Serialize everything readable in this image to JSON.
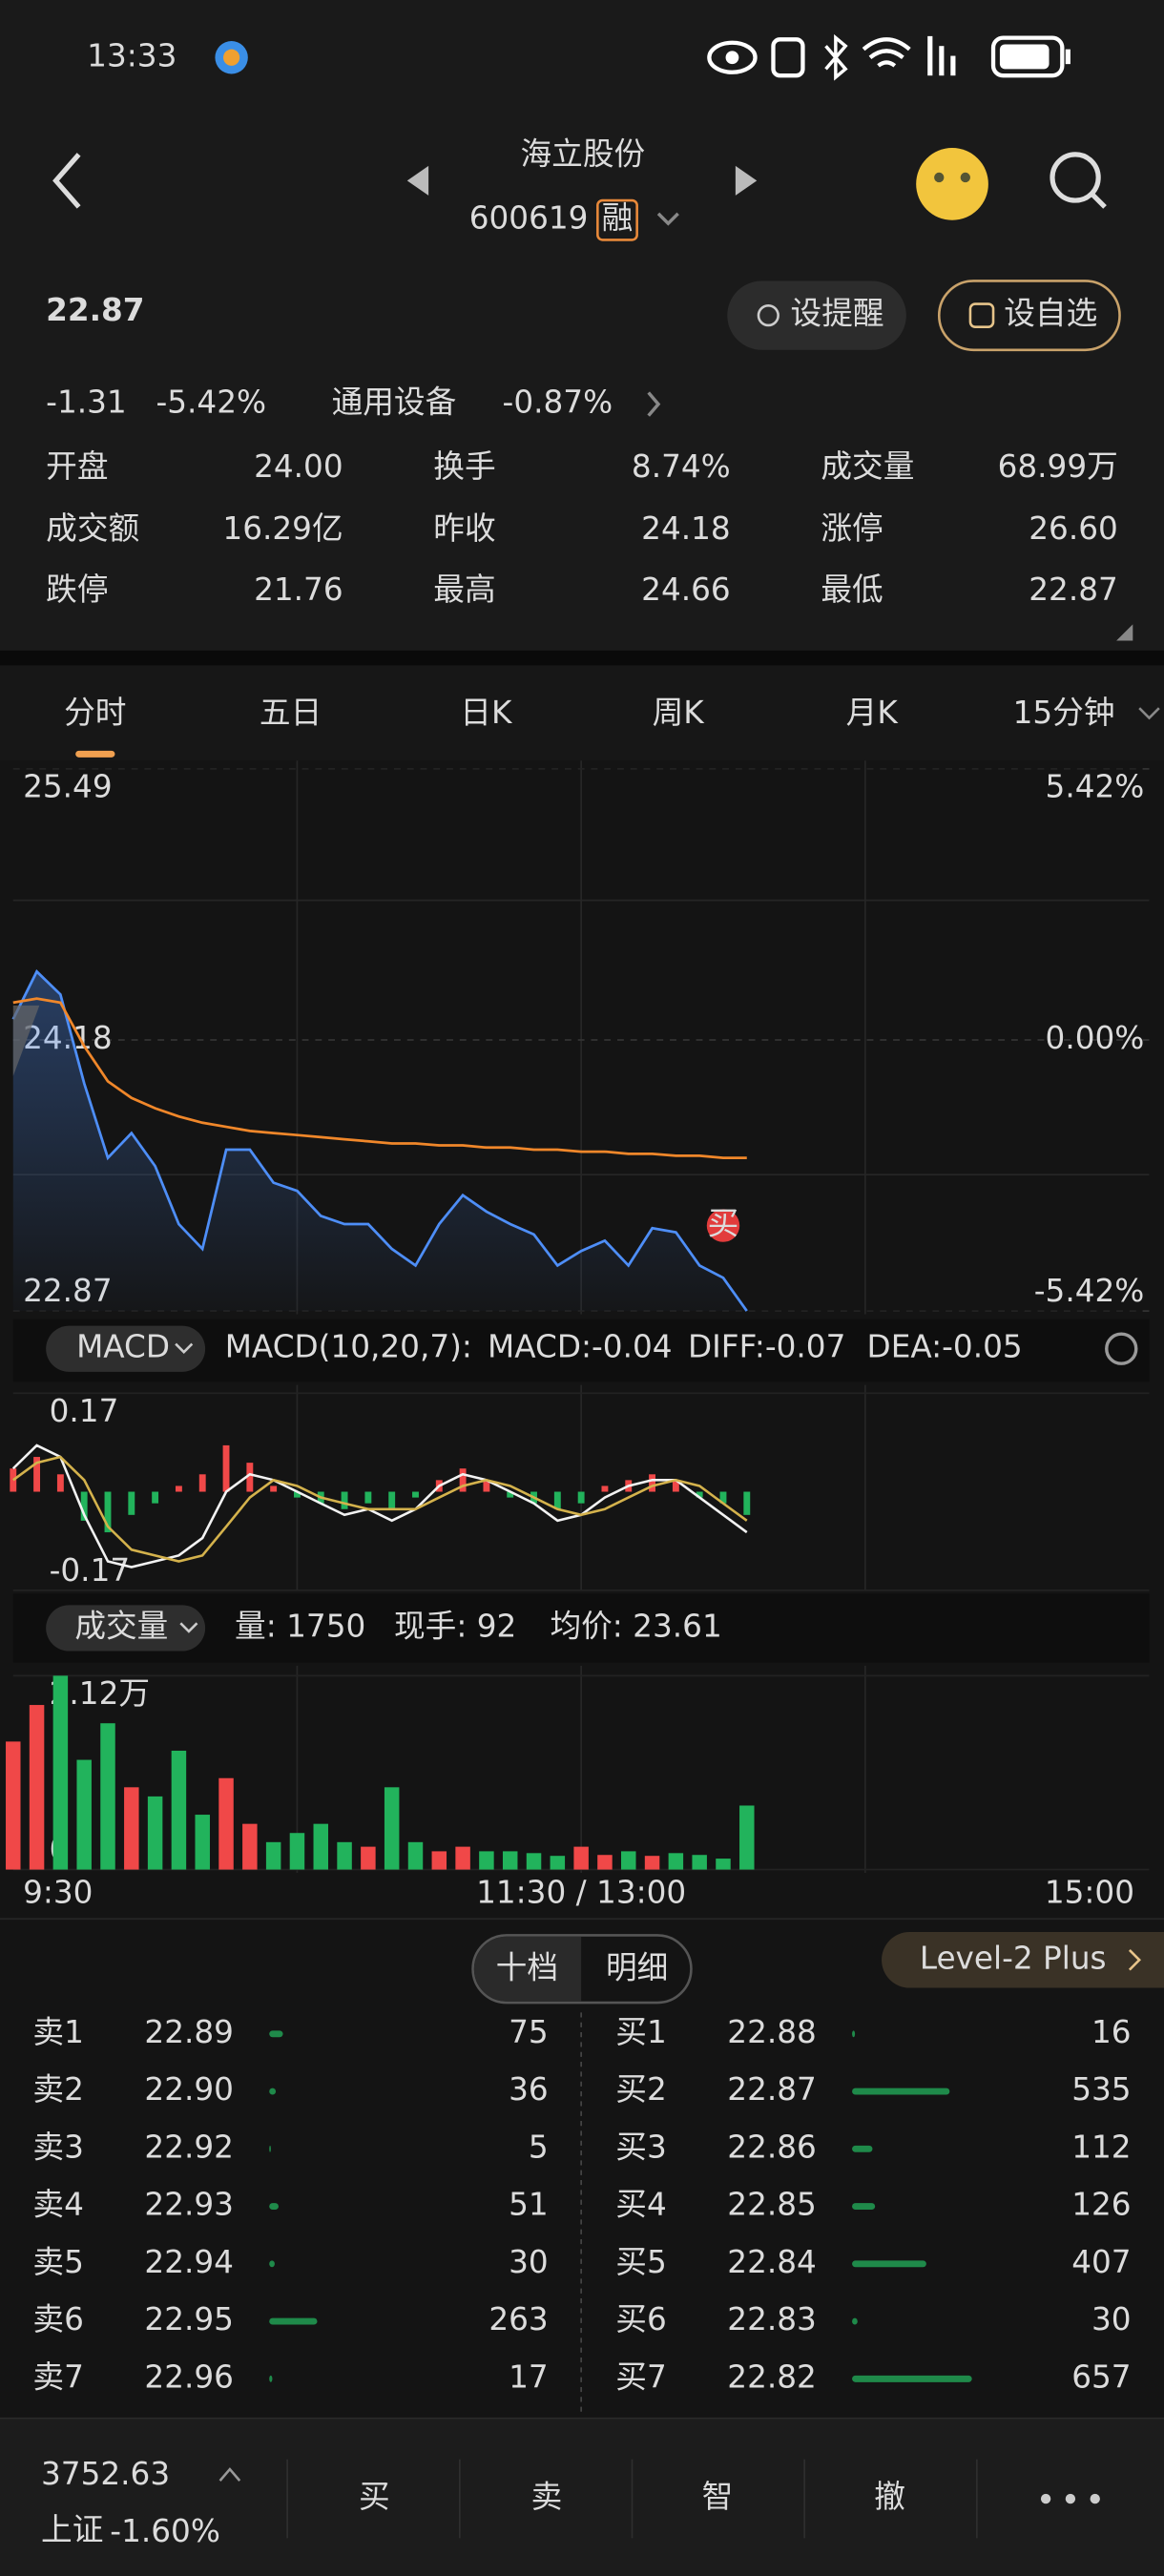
{
  "status_bar": {
    "time": "13:33"
  },
  "header": {
    "title": "海立股份",
    "code": "600619",
    "badge": "融"
  },
  "quote": {
    "price": "22.87",
    "change": "-1.31",
    "change_pct": "-5.42%",
    "sector": "通用设备",
    "sector_pct": "-0.87%",
    "buttons": [
      "设提醒",
      "设自选"
    ]
  },
  "stats": [
    {
      "label": "开盘",
      "value": "24.00",
      "color": "#22b35c"
    },
    {
      "label": "换手",
      "value": "8.74%",
      "color": "#e8e8e8"
    },
    {
      "label": "成交量",
      "value": "68.99万",
      "color": "#e8e8e8"
    },
    {
      "label": "成交额",
      "value": "16.29亿",
      "color": "#e8e8e8"
    },
    {
      "label": "昨收",
      "value": "24.18",
      "color": "#e8e8e8"
    },
    {
      "label": "涨停",
      "value": "26.60",
      "color": "#f04848"
    },
    {
      "label": "跌停",
      "value": "21.76",
      "color": "#22b35c"
    },
    {
      "label": "最高",
      "value": "24.66",
      "color": "#f04848"
    },
    {
      "label": "最低",
      "value": "22.87",
      "color": "#22b35c"
    }
  ],
  "tabs": [
    "分时",
    "五日",
    "日K",
    "周K",
    "月K",
    "15分钟"
  ],
  "chart_data": [
    {
      "type": "line",
      "up_color": "#f04848",
      "down_color": "#22b35c",
      "series": [
        {
          "color": "#4e8ef7",
          "values": [
            24.28,
            24.51,
            24.4,
            23.97,
            23.61,
            23.73,
            23.57,
            23.29,
            23.17,
            23.65,
            23.65,
            23.49,
            23.45,
            23.33,
            23.29,
            23.29,
            23.17,
            23.09,
            23.29,
            23.43,
            23.35,
            23.29,
            23.24,
            23.09,
            23.16,
            23.21,
            23.09,
            23.27,
            23.25,
            23.09,
            23.03,
            22.87
          ]
        },
        {
          "color": "#f0872a",
          "values": [
            24.36,
            24.38,
            24.36,
            24.15,
            23.98,
            23.9,
            23.85,
            23.81,
            23.78,
            23.76,
            23.74,
            23.73,
            23.72,
            23.71,
            23.7,
            23.69,
            23.68,
            23.68,
            23.67,
            23.67,
            23.66,
            23.66,
            23.65,
            23.65,
            23.64,
            23.64,
            23.63,
            23.63,
            23.62,
            23.62,
            23.61,
            23.61
          ]
        }
      ],
      "ylim": [
        22.87,
        25.49
      ],
      "yticks": [
        25.49,
        24.18,
        22.87
      ],
      "y2lim": [
        -5.42,
        5.42
      ],
      "y2ticks": [
        {
          "value": 5.42,
          "label": "5.42%"
        },
        {
          "value": 0,
          "label": "0.00%"
        },
        {
          "value": -5.42,
          "label": "-5.42%"
        }
      ],
      "x_labels": [
        "9:30",
        "11:30 / 13:00",
        "15:00"
      ],
      "marker": "买"
    },
    {
      "type": "bar",
      "up_color": "#f04848",
      "down_color": "#22b35c",
      "selector": "MACD",
      "params": "MACD(10,20,7):",
      "readouts": [
        "MACD:-0.04",
        "DIFF:-0.07",
        "DEA:-0.05"
      ],
      "series": [
        {
          "values": [
            0.04,
            0.06,
            0.03,
            -0.05,
            -0.07,
            -0.04,
            -0.02,
            0.01,
            0.03,
            0.08,
            0.05,
            0.01,
            -0.01,
            -0.02,
            -0.03,
            -0.02,
            -0.03,
            -0.01,
            0.02,
            0.04,
            0.02,
            -0.01,
            -0.02,
            -0.03,
            -0.02,
            0.01,
            0.02,
            0.03,
            0.02,
            -0.01,
            -0.02,
            -0.04
          ]
        },
        {
          "type": "line",
          "color": "#f2f2f2",
          "values": [
            0.04,
            0.08,
            0.06,
            -0.04,
            -0.12,
            -0.13,
            -0.12,
            -0.11,
            -0.08,
            0.0,
            0.03,
            0.02,
            0.0,
            -0.02,
            -0.04,
            -0.03,
            -0.05,
            -0.03,
            0.01,
            0.03,
            0.02,
            0.0,
            -0.02,
            -0.05,
            -0.04,
            -0.01,
            0.01,
            0.02,
            0.02,
            -0.01,
            -0.04,
            -0.07
          ]
        },
        {
          "type": "line",
          "color": "#d4b24c",
          "values": [
            0.02,
            0.05,
            0.06,
            0.02,
            -0.06,
            -0.1,
            -0.11,
            -0.12,
            -0.11,
            -0.06,
            -0.01,
            0.02,
            0.01,
            -0.01,
            -0.02,
            -0.03,
            -0.03,
            -0.03,
            -0.01,
            0.01,
            0.02,
            0.01,
            -0.01,
            -0.03,
            -0.04,
            -0.03,
            -0.01,
            0.01,
            0.02,
            0.01,
            -0.02,
            -0.05
          ]
        }
      ],
      "ylim": [
        -0.17,
        0.17
      ],
      "yticks": [
        0.17,
        -0.17
      ]
    },
    {
      "type": "bar",
      "up_color": "#f04848",
      "down_color": "#22b35c",
      "selector": "成交量",
      "readouts": [
        "量: 1750",
        "现手: 92",
        "均价: 23.61"
      ],
      "series": [
        {
          "values": [
            14000,
            18000,
            21200,
            12000,
            16000,
            9000,
            8000,
            13000,
            6000,
            10000,
            5000,
            3000,
            4000,
            5000,
            3000,
            2500,
            9000,
            3000,
            2000,
            2500,
            2000,
            2000,
            1800,
            1500,
            2500,
            1600,
            2000,
            1500,
            1800,
            1600,
            1200,
            7000
          ]
        }
      ],
      "ylim": [
        0,
        21200
      ],
      "yticks": [
        {
          "value": 21200,
          "label": "2.12万"
        },
        0
      ]
    }
  ],
  "order_book": {
    "tabs": [
      "十档",
      "明细"
    ],
    "level2": "Level-2 Plus",
    "asks": [
      {
        "label": "卖1",
        "price": "22.89",
        "qty": 75
      },
      {
        "label": "卖2",
        "price": "22.90",
        "qty": 36
      },
      {
        "label": "卖3",
        "price": "22.92",
        "qty": 5
      },
      {
        "label": "卖4",
        "price": "22.93",
        "qty": 51
      },
      {
        "label": "卖5",
        "price": "22.94",
        "qty": 30
      },
      {
        "label": "卖6",
        "price": "22.95",
        "qty": 263
      },
      {
        "label": "卖7",
        "price": "22.96",
        "qty": 17
      }
    ],
    "bids": [
      {
        "label": "买1",
        "price": "22.88",
        "qty": 16
      },
      {
        "label": "买2",
        "price": "22.87",
        "qty": 535
      },
      {
        "label": "买3",
        "price": "22.86",
        "qty": 112
      },
      {
        "label": "买4",
        "price": "22.85",
        "qty": 126
      },
      {
        "label": "买5",
        "price": "22.84",
        "qty": 407
      },
      {
        "label": "买6",
        "price": "22.83",
        "qty": 30
      },
      {
        "label": "买7",
        "price": "22.82",
        "qty": 657
      }
    ]
  },
  "index": {
    "value": "3752.63",
    "name": "上证",
    "pct": "-1.60%"
  },
  "actions": [
    "买",
    "卖",
    "智",
    "撤"
  ]
}
